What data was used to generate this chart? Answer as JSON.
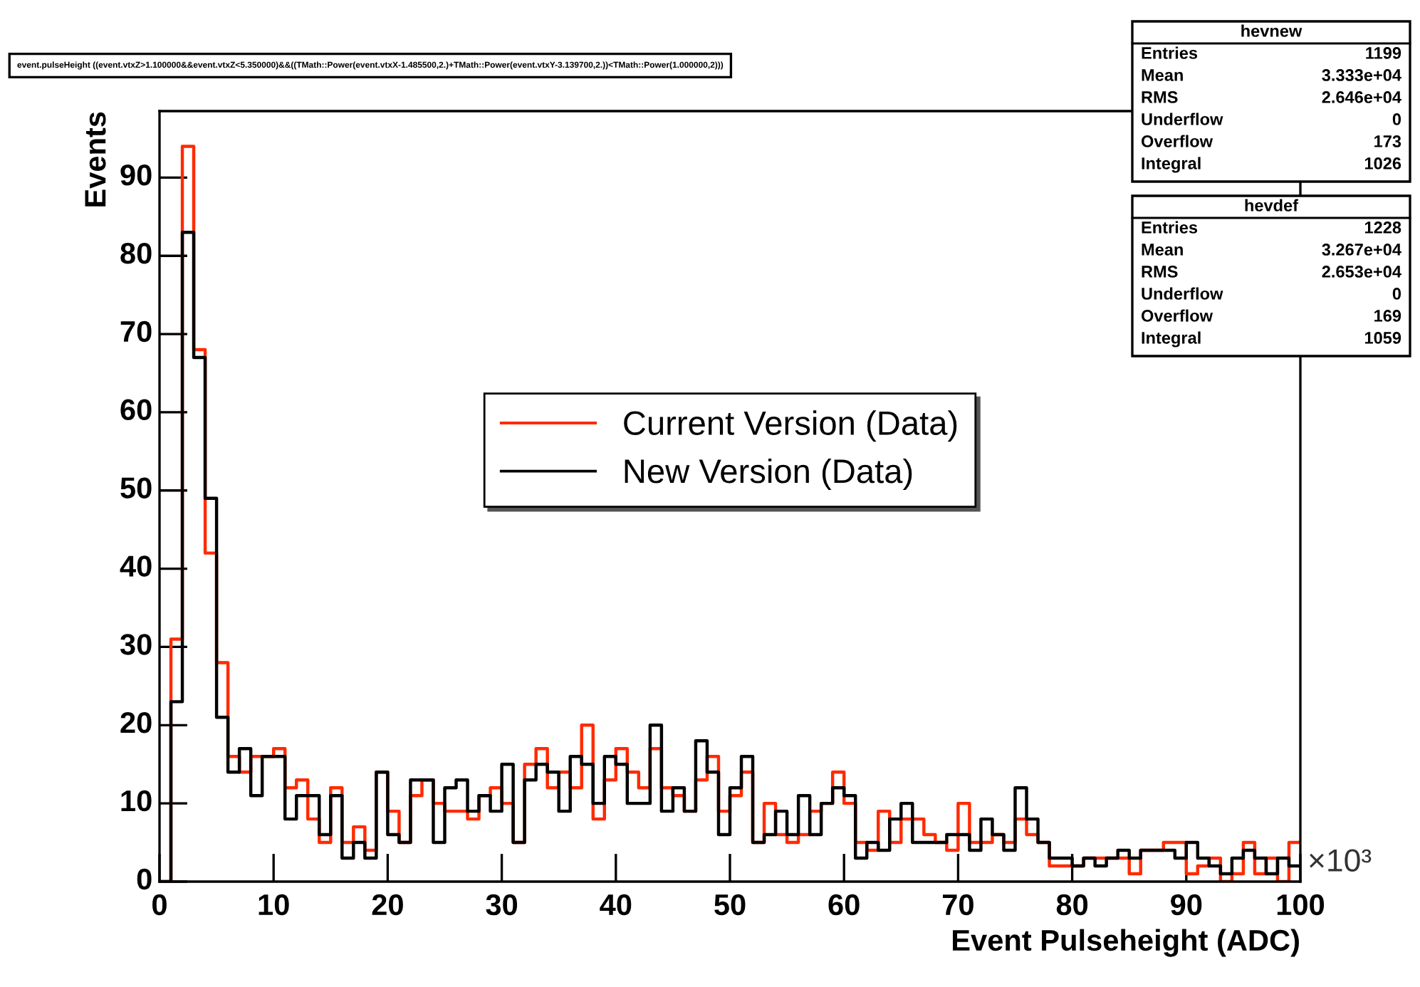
{
  "chart_data": {
    "type": "histogram",
    "xlabel": "Event Pulseheight (ADC)",
    "ylabel": "Events",
    "bins": [
      0,
      1,
      2,
      3,
      4,
      5,
      6,
      7,
      8,
      9,
      10,
      11,
      12,
      13,
      14,
      15,
      16,
      17,
      18,
      19,
      20,
      21,
      22,
      23,
      24,
      25,
      26,
      27,
      28,
      29,
      30,
      31,
      32,
      33,
      34,
      35,
      36,
      37,
      38,
      39,
      40,
      41,
      42,
      43,
      44,
      45,
      46,
      47,
      48,
      49,
      50,
      51,
      52,
      53,
      54,
      55,
      56,
      57,
      58,
      59,
      60,
      61,
      62,
      63,
      64,
      65,
      66,
      67,
      68,
      69,
      70,
      71,
      72,
      73,
      74,
      75,
      76,
      77,
      78,
      79,
      80,
      81,
      82,
      83,
      84,
      85,
      86,
      87,
      88,
      89,
      90,
      91,
      92,
      93,
      94,
      95,
      96,
      97,
      98,
      99,
      100
    ],
    "series": [
      {
        "name": "Current Version (Data)",
        "color": "#ff2a00",
        "values": [
          0,
          31,
          94,
          68,
          42,
          28,
          16,
          14,
          16,
          16,
          17,
          12,
          13,
          8,
          5,
          12,
          5,
          7,
          4,
          14,
          9,
          5,
          11,
          13,
          10,
          9,
          9,
          8,
          11,
          12,
          10,
          5,
          15,
          17,
          12,
          14,
          12,
          20,
          8,
          13,
          17,
          14,
          12,
          17,
          12,
          11,
          9,
          13,
          16,
          9,
          11,
          14,
          5,
          10,
          6,
          5,
          6,
          9,
          10,
          14,
          10,
          5,
          4,
          9,
          5,
          8,
          8,
          6,
          5,
          4,
          10,
          5,
          5,
          6,
          5,
          8,
          6,
          5,
          2,
          2,
          2,
          3,
          3,
          3,
          3,
          1,
          4,
          4,
          5,
          5,
          1,
          2,
          3,
          0,
          1,
          5,
          1,
          3,
          0,
          5
        ]
      },
      {
        "name": "New Version (Data)",
        "color": "#000000",
        "values": [
          0,
          23,
          83,
          67,
          49,
          21,
          14,
          17,
          11,
          16,
          16,
          8,
          11,
          11,
          6,
          11,
          3,
          5,
          3,
          14,
          6,
          5,
          13,
          13,
          5,
          12,
          13,
          9,
          11,
          9,
          15,
          5,
          13,
          15,
          14,
          9,
          16,
          15,
          10,
          16,
          15,
          10,
          10,
          20,
          9,
          12,
          9,
          18,
          14,
          6,
          12,
          16,
          5,
          6,
          9,
          6,
          11,
          6,
          10,
          12,
          11,
          3,
          5,
          4,
          8,
          10,
          5,
          5,
          5,
          6,
          6,
          4,
          8,
          6,
          4,
          12,
          8,
          5,
          3,
          3,
          2,
          3,
          2,
          3,
          4,
          3,
          4,
          4,
          4,
          3,
          5,
          3,
          2,
          1,
          3,
          4,
          3,
          1,
          3,
          2
        ]
      }
    ],
    "xlim": [
      0,
      100
    ],
    "ylim": [
      0,
      98.5
    ],
    "xticks": [
      0,
      10,
      20,
      30,
      40,
      50,
      60,
      70,
      80,
      90,
      100
    ],
    "yticks": [
      0,
      10,
      20,
      30,
      40,
      50,
      60,
      70,
      80,
      90
    ],
    "grid": false,
    "legend": "center",
    "annotations": [
      "event.pulseHeight ((event.vtxZ>1.100000&&event.vtxZ<5.350000)&&((TMath::Power(event.vtxX-1.485500,2.)+TMath::Power(event.vtxY-3.139700,2.))<TMath::Power(1.000000,2)))",
      "hevnew",
      "Entries",
      "1199",
      "Mean",
      "3.333e+04",
      "RMS",
      "2.646e+04",
      "Underflow",
      "0",
      "Overflow",
      "173",
      "Integral",
      "1026",
      "hevdef",
      "Entries",
      "1228",
      "Mean",
      "3.267e+04",
      "RMS",
      "2.653e+04",
      "Underflow",
      "0",
      "Overflow",
      "169",
      "Integral",
      "1059",
      "×10³"
    ]
  }
}
